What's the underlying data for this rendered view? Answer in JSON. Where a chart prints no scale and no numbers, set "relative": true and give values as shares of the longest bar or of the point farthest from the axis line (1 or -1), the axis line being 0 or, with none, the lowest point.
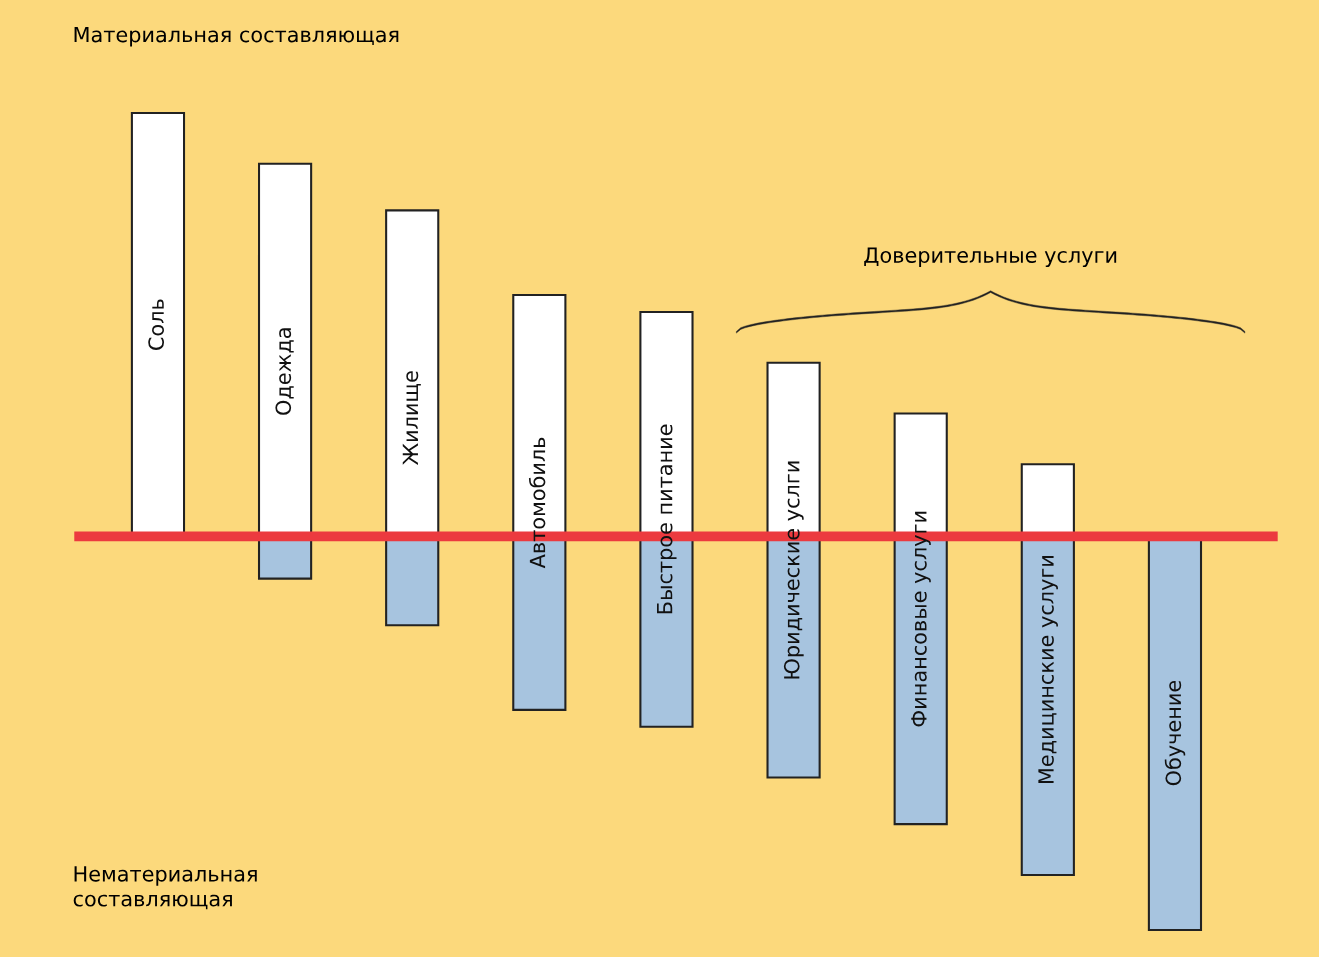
{
  "chart_data": {
    "type": "bar",
    "relative": true,
    "stacked": true,
    "categories": [
      "Соль",
      "Одежда",
      "Жилище",
      "Автомобиль",
      "Быстрое питание",
      "Юридические услги",
      "Финансовые услуги",
      "Медицинские услуги",
      "Обучение"
    ],
    "series": [
      {
        "color": "#ffffff",
        "values": [
          1,
          0.88,
          0.77,
          0.57,
          0.53,
          0.41,
          0.29,
          0.17,
          0
        ]
      },
      {
        "color": "#a7c4df",
        "values": [
          0,
          -0.1,
          -0.21,
          -0.41,
          -0.45,
          -0.57,
          -0.68,
          -0.8,
          -0.93
        ]
      }
    ],
    "annotations": [
      "Материальная составляющая",
      "Нематериальная\nсоставляющая",
      "Доверительные услуги"
    ]
  }
}
